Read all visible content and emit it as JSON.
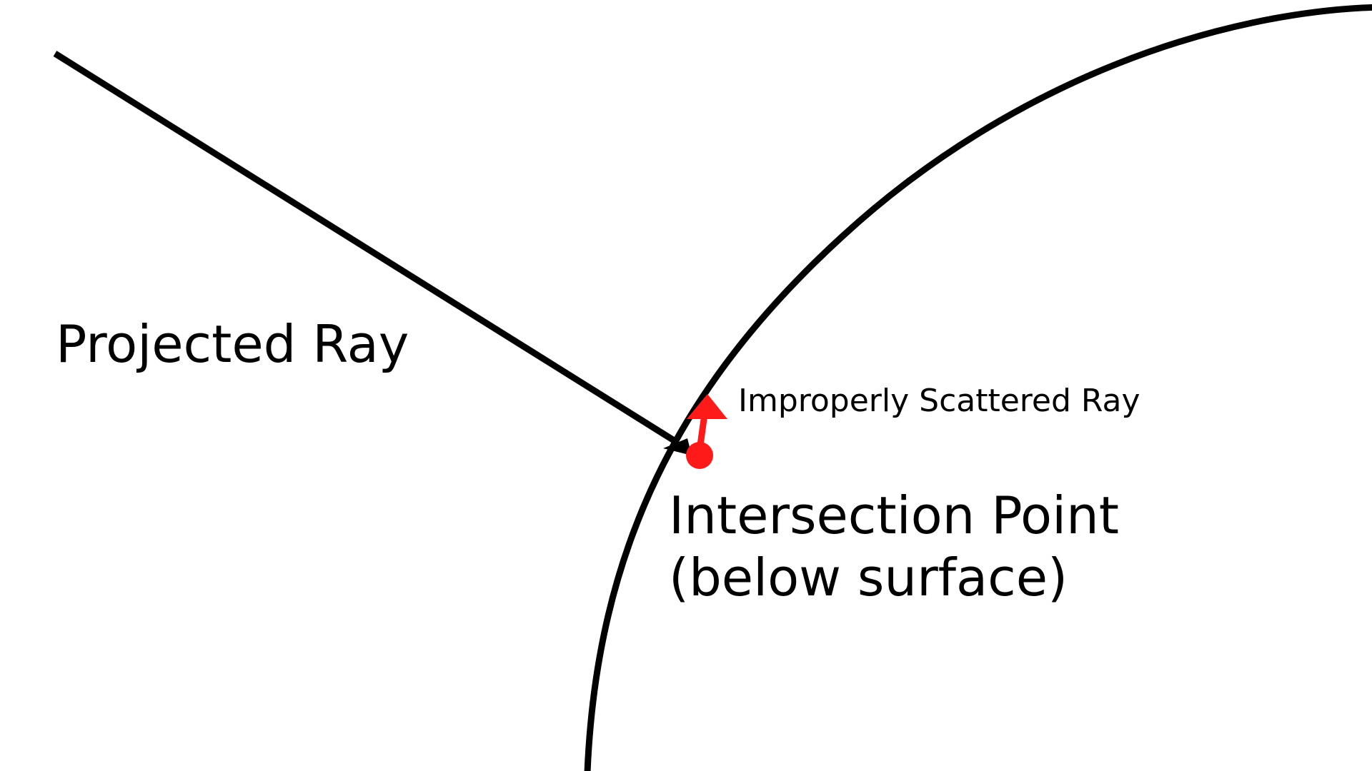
{
  "labels": {
    "projected_ray": "Projected Ray",
    "scattered_ray": "Improperly Scattered Ray",
    "intersection_line1": "Intersection Point",
    "intersection_line2": "(below surface)"
  },
  "colors": {
    "background": "#ffffff",
    "line": "#000000",
    "scatter": "#ff1a1a"
  }
}
